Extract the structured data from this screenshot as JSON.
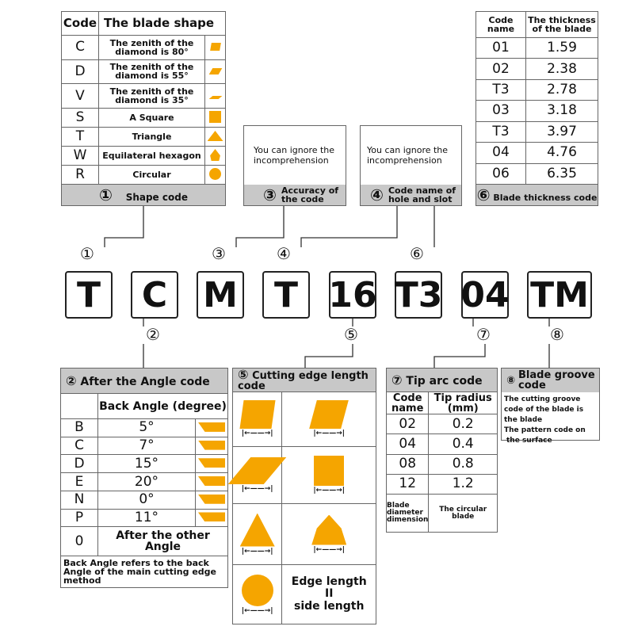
{
  "accent": "#f5a500",
  "shape_table": {
    "h_code": "Code",
    "h_shape": "The blade shape",
    "rows": [
      {
        "code": "C",
        "desc": "The zenith of the diamond is 80°",
        "icon": "rhombus-80-icon"
      },
      {
        "code": "D",
        "desc": "The zenith of the diamond is 55°",
        "icon": "rhombus-55-icon"
      },
      {
        "code": "V",
        "desc": "The zenith of the diamond is 35°",
        "icon": "rhombus-35-icon"
      },
      {
        "code": "S",
        "desc": "A Square",
        "icon": "square-icon"
      },
      {
        "code": "T",
        "desc": "Triangle",
        "icon": "triangle-icon"
      },
      {
        "code": "W",
        "desc": "Equilateral hexagon",
        "icon": "hexagon-icon"
      },
      {
        "code": "R",
        "desc": "Circular",
        "icon": "circle-icon"
      }
    ],
    "footer_num": "①",
    "footer": "Shape code"
  },
  "accuracy": {
    "text": "You can ignore the incomprehension",
    "num": "③",
    "footer": "Accuracy of the code"
  },
  "hole": {
    "text": "You can ignore the incomprehension",
    "num": "④",
    "footer": "Code name of hole and slot"
  },
  "thickness": {
    "h_code": "Code name",
    "h_val": "The thickness of the blade",
    "rows": [
      [
        "01",
        "1.59"
      ],
      [
        "02",
        "2.38"
      ],
      [
        "T3",
        "2.78"
      ],
      [
        "03",
        "3.18"
      ],
      [
        "T3",
        "3.97"
      ],
      [
        "04",
        "4.76"
      ],
      [
        "06",
        "6.35"
      ]
    ],
    "num": "⑥",
    "footer": "Blade thickness code"
  },
  "codes": [
    "T",
    "C",
    "M",
    "T",
    "16",
    "T3",
    "04",
    "TM"
  ],
  "nums": [
    "①",
    "②",
    "③",
    "④",
    "⑤",
    "⑥",
    "⑦",
    "⑧"
  ],
  "angle": {
    "num": "②",
    "title": "After the Angle code",
    "h": "Back Angle (degree)",
    "rows": [
      [
        "B",
        "5°"
      ],
      [
        "C",
        "7°"
      ],
      [
        "D",
        "15°"
      ],
      [
        "E",
        "20°"
      ],
      [
        "N",
        "0°"
      ],
      [
        "P",
        "11°"
      ]
    ],
    "last": [
      "0",
      "After the other Angle"
    ],
    "note": "Back Angle refers to the back Angle of the main cutting edge method"
  },
  "edge": {
    "num": "⑤",
    "title": "Cutting edge length code",
    "text1": "Edge length",
    "text2": "II",
    "text3": "side length"
  },
  "tip": {
    "num": "⑦",
    "title": "Tip arc code",
    "h_code": "Code name",
    "h_val": "Tip radius (mm)",
    "rows": [
      [
        "02",
        "0.2"
      ],
      [
        "04",
        "0.4"
      ],
      [
        "08",
        "0.8"
      ],
      [
        "12",
        "1.2"
      ]
    ],
    "last": [
      "Blade diameter dimension",
      "The circular blade"
    ]
  },
  "groove": {
    "num": "⑧",
    "title": "Blade groove code",
    "lines": [
      "The cutting groove code of the blade is the blade",
      "The pattern code on",
      "the surface"
    ]
  }
}
